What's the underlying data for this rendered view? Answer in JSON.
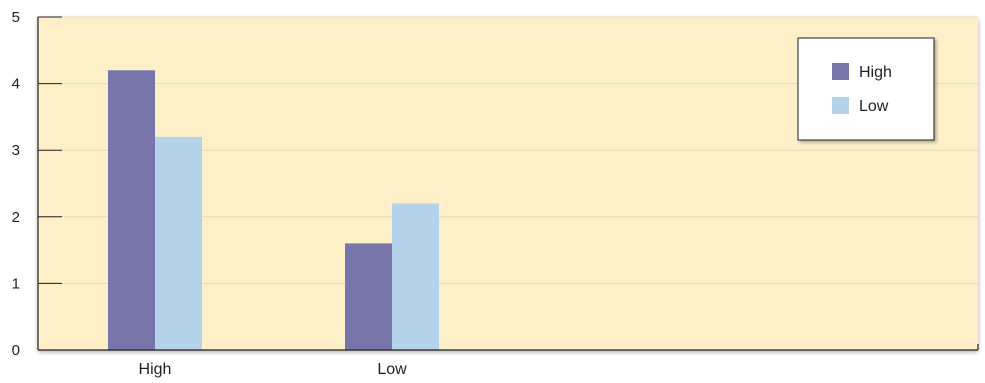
{
  "chart_data": {
    "type": "bar",
    "title": "",
    "xlabel": "",
    "ylabel": "",
    "categories": [
      "High",
      "Low"
    ],
    "series": [
      {
        "name": "High",
        "values": [
          4.2,
          1.6
        ]
      },
      {
        "name": "Low",
        "values": [
          3.2,
          2.2
        ]
      }
    ],
    "ylim": [
      0,
      5
    ],
    "yticks": [
      0,
      1,
      2,
      3,
      4,
      5
    ],
    "grid": true,
    "legend": "top-right"
  },
  "colors": {
    "background": "#fdf0c8",
    "grid": "#e6d9b0",
    "axis": "#231f20",
    "series": [
      "#7875aa",
      "#b4d3ea"
    ]
  }
}
